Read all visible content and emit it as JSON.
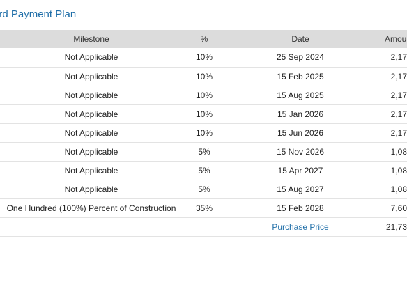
{
  "page": {
    "title": "ard Payment Plan"
  },
  "table": {
    "headers": {
      "milestone": "Milestone",
      "percent": "%",
      "date": "Date",
      "amount": "Amount"
    },
    "rows": [
      {
        "milestone": "Not Applicable",
        "percent": "10%",
        "date": "25 Sep 2024",
        "amount": "2,17"
      },
      {
        "milestone": "Not Applicable",
        "percent": "10%",
        "date": "15 Feb 2025",
        "amount": "2,17"
      },
      {
        "milestone": "Not Applicable",
        "percent": "10%",
        "date": "15 Aug 2025",
        "amount": "2,17"
      },
      {
        "milestone": "Not Applicable",
        "percent": "10%",
        "date": "15 Jan 2026",
        "amount": "2,17"
      },
      {
        "milestone": "Not Applicable",
        "percent": "10%",
        "date": "15 Jun 2026",
        "amount": "2,17"
      },
      {
        "milestone": "Not Applicable",
        "percent": "5%",
        "date": "15 Nov 2026",
        "amount": "1,08"
      },
      {
        "milestone": "Not Applicable",
        "percent": "5%",
        "date": "15 Apr 2027",
        "amount": "1,08"
      },
      {
        "milestone": "Not Applicable",
        "percent": "5%",
        "date": "15 Aug 2027",
        "amount": "1,08"
      },
      {
        "milestone": "One Hundred (100%) Percent of Construction",
        "percent": "35%",
        "date": "15 Feb 2028",
        "amount": "7,60"
      }
    ],
    "total": {
      "label": "Purchase Price",
      "amount": "21,73"
    }
  },
  "colors": {
    "accent": "#1f6ea8",
    "header_bg": "#dcdcdc",
    "row_border": "#e3e3e3"
  }
}
